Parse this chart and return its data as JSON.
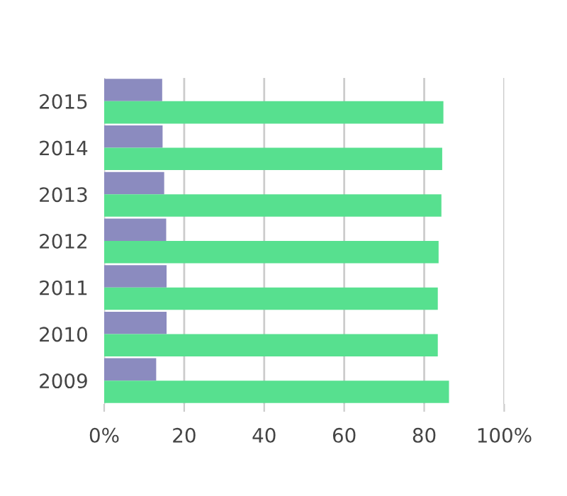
{
  "chart_data": {
    "type": "bar",
    "orientation": "horizontal",
    "categories": [
      "2015",
      "2014",
      "2013",
      "2012",
      "2011",
      "2010",
      "2009"
    ],
    "series": [
      {
        "color": "#8b8bbf",
        "values": [
          14.5,
          14.6,
          15.0,
          15.5,
          15.6,
          15.6,
          13.0
        ]
      },
      {
        "color": "#57e08f",
        "values": [
          84.8,
          84.5,
          84.3,
          83.6,
          83.4,
          83.4,
          86.2
        ]
      }
    ],
    "xlim": [
      0,
      100
    ],
    "xticks": [
      {
        "value": 0,
        "label": "0%"
      },
      20,
      40,
      60,
      80,
      {
        "value": 100,
        "label": "100%"
      }
    ],
    "grid": "x"
  }
}
